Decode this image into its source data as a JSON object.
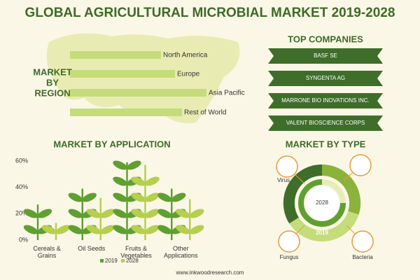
{
  "title": "GLOBAL AGRICULTURAL MICROBIAL MARKET 2019-2028",
  "market_by_region": {
    "heading_lines": [
      "MARKET",
      "BY",
      "REGION"
    ],
    "regions": [
      "North America",
      "Europe",
      "Asia Pacific",
      "Rest of World"
    ]
  },
  "top_companies": {
    "heading": "TOP COMPANIES",
    "companies": [
      "BASF SE",
      "SYNGENTA AG",
      "MARRONE BIO INOVATIONS INC.",
      "VALENT BIOSCIENCE CORPS"
    ]
  },
  "chart_data": {
    "type": "bar",
    "title": "MARKET BY APPLICATION",
    "categories": [
      "Cereals & Grains",
      "Oil Seeds",
      "Fruits & Vegetables",
      "Other Applications"
    ],
    "series": [
      {
        "name": "2019",
        "color": "#5fa030",
        "values": [
          27,
          39,
          59,
          39
        ]
      },
      {
        "name": "2028",
        "color": "#b6cf4e",
        "values": [
          13,
          32,
          57,
          31
        ]
      }
    ],
    "ylim": [
      0,
      60
    ],
    "yticks": [
      {
        "value": 0,
        "label": "0%"
      },
      {
        "value": 20,
        "label": "20%"
      },
      {
        "value": 40,
        "label": "40%"
      },
      {
        "value": 60,
        "label": "60%"
      }
    ]
  },
  "market_by_type": {
    "heading": "MARKET BY TYPE",
    "types": [
      "Virus",
      "Fungus",
      "Bacteria"
    ],
    "rings": [
      "2028",
      "2019"
    ]
  },
  "footer": "www.inkwoodresearch.com"
}
